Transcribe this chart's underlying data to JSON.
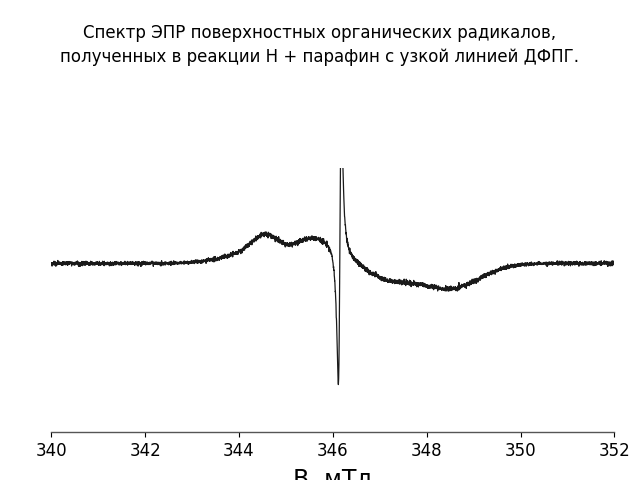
{
  "title_line1": "Спектр ЭПР поверхностных органических радикалов,",
  "title_line2": "полученных в реакции Н + парафин с узкой линией ДФПГ.",
  "xlabel": "В, мТл",
  "xmin": 340,
  "xmax": 352,
  "xticks": [
    340,
    342,
    344,
    346,
    348,
    350,
    352
  ],
  "background_color": "#ffffff",
  "line_color": "#1a1a1a",
  "title_fontsize": 12,
  "xlabel_fontsize": 17
}
